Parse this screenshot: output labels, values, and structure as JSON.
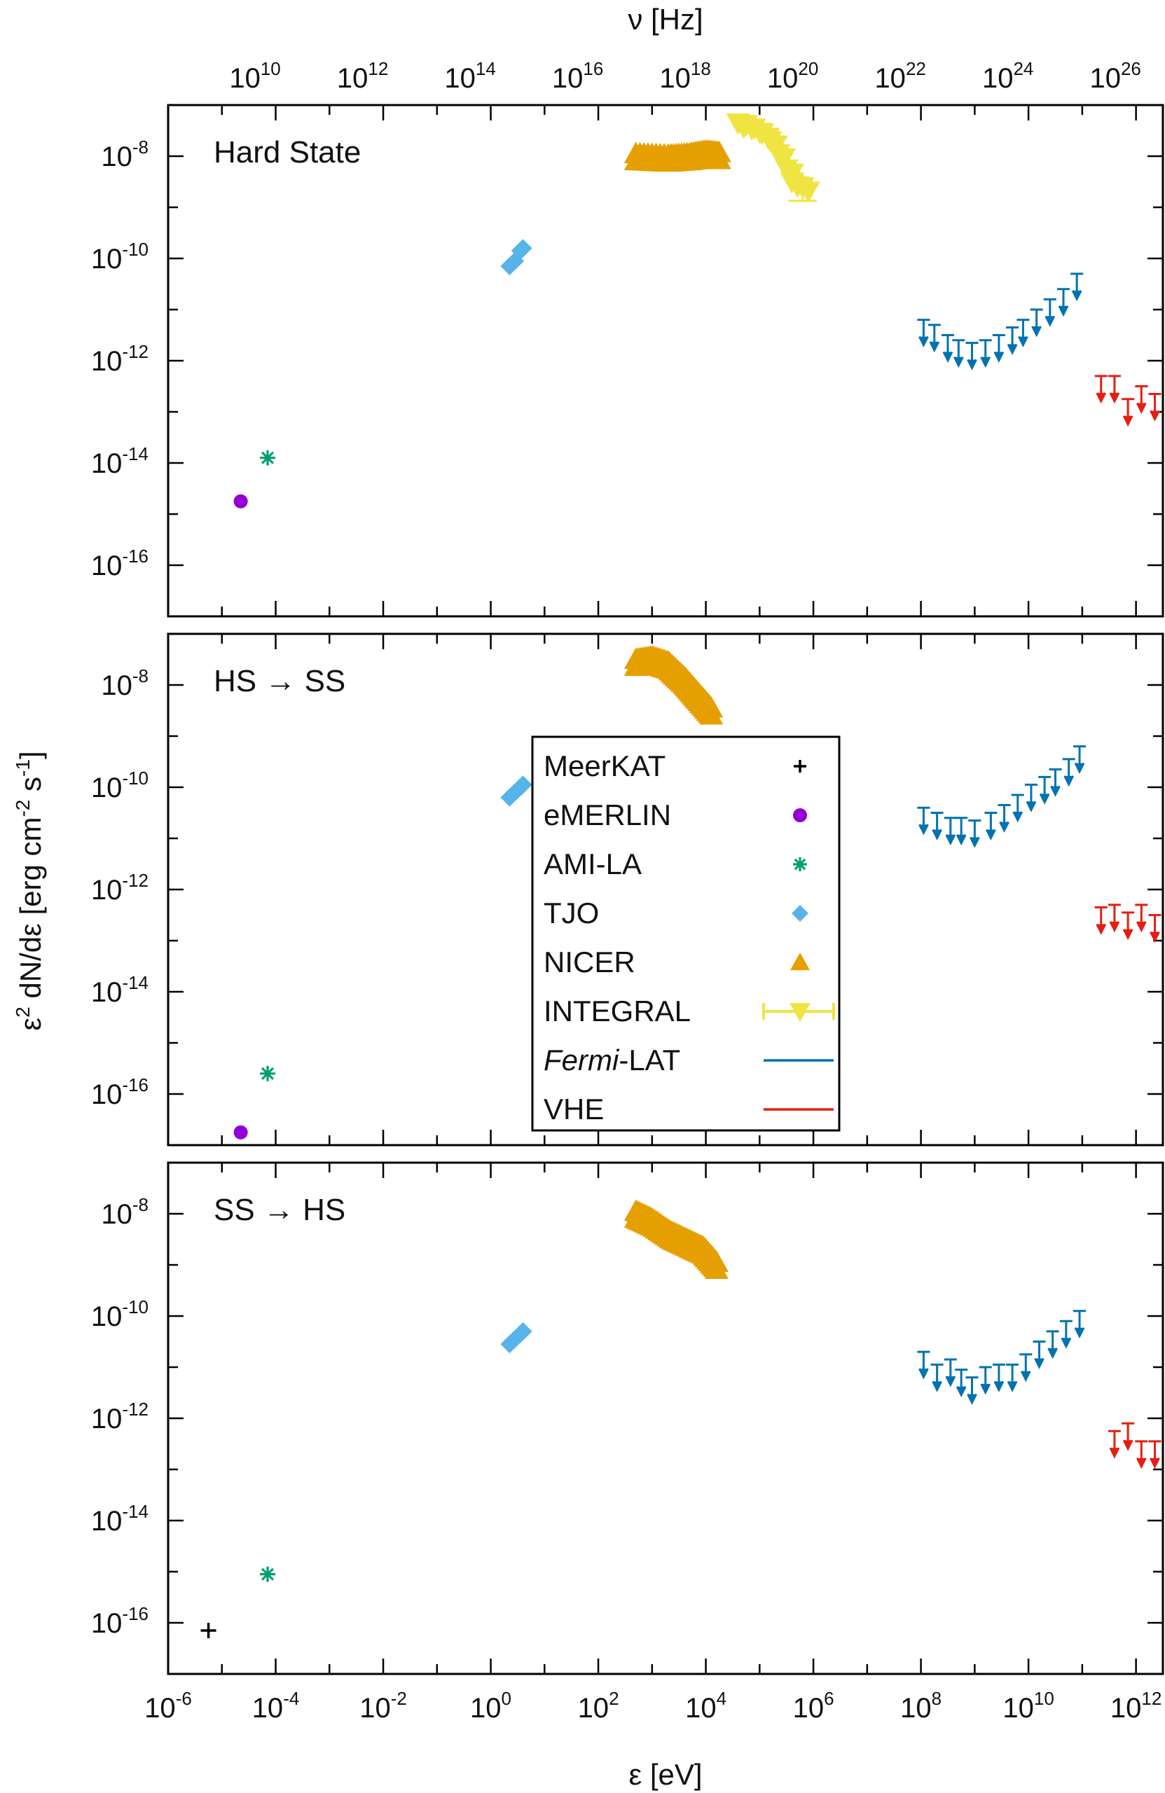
{
  "chart_data": {
    "type": "scatter",
    "xlabel": "ε [eV]",
    "ylabel_parts": [
      "ε",
      "2",
      " dN/dε [erg cm",
      "-2",
      " s",
      "-1",
      "]"
    ],
    "top_xlabel": "ν [Hz]",
    "x_scale": "log10",
    "xlim_log10": [
      -6,
      12.5
    ],
    "y_scale": "log10",
    "ylim_log10": [
      -17,
      -7
    ],
    "x_ticks": [
      {
        "base": "10",
        "exp": "-6",
        "log": -6
      },
      {
        "base": "10",
        "exp": "-4",
        "log": -4
      },
      {
        "base": "10",
        "exp": "-2",
        "log": -2
      },
      {
        "base": "10",
        "exp": "0",
        "log": 0
      },
      {
        "base": "10",
        "exp": "2",
        "log": 2
      },
      {
        "base": "10",
        "exp": "4",
        "log": 4
      },
      {
        "base": "10",
        "exp": "6",
        "log": 6
      },
      {
        "base": "10",
        "exp": "8",
        "log": 8
      },
      {
        "base": "10",
        "exp": "10",
        "log": 10
      },
      {
        "base": "10",
        "exp": "12",
        "log": 12
      }
    ],
    "top_ticks": [
      {
        "base": "10",
        "exp": "10",
        "log": 10
      },
      {
        "base": "10",
        "exp": "12",
        "log": 12
      },
      {
        "base": "10",
        "exp": "14",
        "log": 14
      },
      {
        "base": "10",
        "exp": "16",
        "log": 16
      },
      {
        "base": "10",
        "exp": "18",
        "log": 18
      },
      {
        "base": "10",
        "exp": "20",
        "log": 20
      },
      {
        "base": "10",
        "exp": "22",
        "log": 22
      },
      {
        "base": "10",
        "exp": "24",
        "log": 24
      },
      {
        "base": "10",
        "exp": "26",
        "log": 26
      }
    ],
    "y_ticks": [
      {
        "base": "10",
        "exp": "-8",
        "log": -8
      },
      {
        "base": "10",
        "exp": "-10",
        "log": -10
      },
      {
        "base": "10",
        "exp": "-12",
        "log": -12
      },
      {
        "base": "10",
        "exp": "-14",
        "log": -14
      },
      {
        "base": "10",
        "exp": "-16",
        "log": -16
      }
    ],
    "legend": {
      "position": "center",
      "entries": [
        {
          "name": "MeerKAT",
          "prefix": "",
          "italic": "",
          "suffix": "",
          "marker": "plus",
          "color": "#000000"
        },
        {
          "name": "eMERLIN",
          "prefix": "",
          "italic": "",
          "suffix": "",
          "marker": "circle",
          "color": "#9400d3"
        },
        {
          "name": "AMI-LA",
          "prefix": "",
          "italic": "",
          "suffix": "",
          "marker": "asterisk",
          "color": "#009e73"
        },
        {
          "name": "TJO",
          "prefix": "",
          "italic": "",
          "suffix": "",
          "marker": "diamond",
          "color": "#56b4e9"
        },
        {
          "name": "NICER",
          "prefix": "",
          "italic": "",
          "suffix": "",
          "marker": "triangle-up",
          "color": "#e69f00"
        },
        {
          "name": "INTEGRAL",
          "prefix": "",
          "italic": "",
          "suffix": "",
          "marker": "triangle-down-errbar",
          "color": "#f0e442"
        },
        {
          "name": "Fermi-LAT",
          "prefix": "",
          "italic": "Fermi",
          "suffix": "-LAT",
          "marker": "line",
          "color": "#0072b2"
        },
        {
          "name": "VHE",
          "prefix": "",
          "italic": "",
          "suffix": "",
          "marker": "line",
          "color": "#e51e10"
        }
      ]
    },
    "panels": [
      {
        "label": "Hard State",
        "MeerKAT": [],
        "eMERLIN": [
          [
            -4.65,
            -14.75
          ]
        ],
        "AMI-LA": [
          [
            -4.15,
            -13.9
          ]
        ],
        "TJO": [
          [
            0.35,
            -10.15
          ],
          [
            0.45,
            -10.05
          ],
          [
            0.55,
            -9.85
          ],
          [
            0.6,
            -9.8
          ]
        ],
        "NICER_band": {
          "x": [
            2.7,
            3.3,
            3.7,
            4.0,
            4.25
          ],
          "y": [
            -7.95,
            -7.98,
            -7.95,
            -7.9,
            -7.93
          ],
          "width": 0.32
        },
        "INTEGRAL": [
          [
            4.6,
            -7.35
          ],
          [
            4.75,
            -7.38
          ],
          [
            4.9,
            -7.45
          ],
          [
            5.05,
            -7.55
          ],
          [
            5.2,
            -7.7
          ],
          [
            5.35,
            -7.95
          ],
          [
            5.5,
            -8.25
          ],
          [
            5.6,
            -8.5
          ],
          [
            5.8,
            -8.6
          ]
        ],
        "FermiLAT_UL": [
          [
            8.05,
            -11.2
          ],
          [
            8.25,
            -11.3
          ],
          [
            8.5,
            -11.5
          ],
          [
            8.7,
            -11.6
          ],
          [
            8.95,
            -11.65
          ],
          [
            9.2,
            -11.6
          ],
          [
            9.45,
            -11.5
          ],
          [
            9.7,
            -11.35
          ],
          [
            9.9,
            -11.2
          ],
          [
            10.15,
            -11.0
          ],
          [
            10.4,
            -10.8
          ],
          [
            10.65,
            -10.6
          ],
          [
            10.9,
            -10.3
          ]
        ],
        "VHE_UL": [
          [
            11.35,
            -12.3
          ],
          [
            11.6,
            -12.3
          ],
          [
            11.85,
            -12.75
          ],
          [
            12.1,
            -12.5
          ],
          [
            12.35,
            -12.65
          ]
        ]
      },
      {
        "label": "HS → SS",
        "MeerKAT": [],
        "eMERLIN": [
          [
            -4.65,
            -16.75
          ]
        ],
        "AMI-LA": [
          [
            -4.15,
            -15.6
          ]
        ],
        "TJO": [
          [
            0.35,
            -10.2
          ],
          [
            0.45,
            -10.1
          ],
          [
            0.55,
            -10.0
          ],
          [
            0.6,
            -9.95
          ]
        ],
        "NICER_band": {
          "x": [
            2.7,
            3.0,
            3.3,
            3.6,
            3.85,
            4.1
          ],
          "y": [
            -7.5,
            -7.45,
            -7.55,
            -7.85,
            -8.15,
            -8.45
          ],
          "width": 0.32
        },
        "INTEGRAL": [],
        "FermiLAT_UL": [
          [
            8.05,
            -10.4
          ],
          [
            8.3,
            -10.5
          ],
          [
            8.55,
            -10.6
          ],
          [
            8.75,
            -10.6
          ],
          [
            9.0,
            -10.65
          ],
          [
            9.3,
            -10.5
          ],
          [
            9.55,
            -10.35
          ],
          [
            9.8,
            -10.15
          ],
          [
            10.05,
            -9.95
          ],
          [
            10.3,
            -9.8
          ],
          [
            10.5,
            -9.65
          ],
          [
            10.75,
            -9.45
          ],
          [
            10.95,
            -9.2
          ]
        ],
        "VHE_UL": [
          [
            11.35,
            -12.35
          ],
          [
            11.6,
            -12.3
          ],
          [
            11.85,
            -12.45
          ],
          [
            12.1,
            -12.3
          ],
          [
            12.35,
            -12.5
          ]
        ]
      },
      {
        "label": "SS → HS",
        "MeerKAT": [
          [
            -5.25,
            -16.15
          ]
        ],
        "eMERLIN": [],
        "AMI-LA": [
          [
            -4.15,
            -15.05
          ]
        ],
        "TJO": [
          [
            0.35,
            -10.55
          ],
          [
            0.45,
            -10.45
          ],
          [
            0.55,
            -10.35
          ],
          [
            0.6,
            -10.3
          ]
        ],
        "NICER_band": {
          "x": [
            2.7,
            3.0,
            3.35,
            3.65,
            3.95,
            4.2
          ],
          "y": [
            -7.95,
            -8.1,
            -8.35,
            -8.5,
            -8.65,
            -8.95
          ],
          "width": 0.32
        },
        "INTEGRAL": [],
        "FermiLAT_UL": [
          [
            8.05,
            -10.7
          ],
          [
            8.3,
            -10.95
          ],
          [
            8.55,
            -10.85
          ],
          [
            8.75,
            -11.05
          ],
          [
            8.95,
            -11.2
          ],
          [
            9.2,
            -11.0
          ],
          [
            9.45,
            -10.95
          ],
          [
            9.7,
            -10.95
          ],
          [
            9.95,
            -10.75
          ],
          [
            10.2,
            -10.5
          ],
          [
            10.45,
            -10.3
          ],
          [
            10.7,
            -10.1
          ],
          [
            10.95,
            -9.9
          ]
        ],
        "VHE_UL": [
          [
            11.6,
            -12.25
          ],
          [
            11.85,
            -12.1
          ],
          [
            12.1,
            -12.45
          ],
          [
            12.35,
            -12.45
          ]
        ]
      }
    ]
  }
}
